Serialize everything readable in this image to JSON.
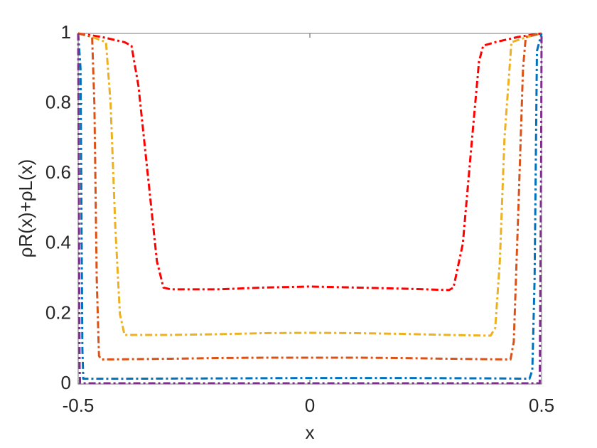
{
  "chart_data": {
    "type": "line",
    "xlabel": "x",
    "ylabel": "ρR(x)+ρL(x)",
    "xlim": [
      -0.5,
      0.5
    ],
    "ylim": [
      0,
      1
    ],
    "xticks": [
      -0.5,
      0,
      0.5
    ],
    "yticks": [
      0,
      0.2,
      0.4,
      0.6,
      0.8,
      1
    ],
    "series": [
      {
        "color": "#ff0000",
        "x": [
          -0.5,
          -0.45,
          -0.4,
          -0.385,
          -0.37,
          -0.35,
          -0.33,
          -0.316,
          -0.3,
          -0.2,
          -0.1,
          0,
          0.1,
          0.2,
          0.3,
          0.31,
          0.33,
          0.35,
          0.365,
          0.374,
          0.4,
          0.45,
          0.5
        ],
        "values": [
          1,
          0.99,
          0.975,
          0.965,
          0.85,
          0.6,
          0.35,
          0.275,
          0.27,
          0.27,
          0.275,
          0.278,
          0.275,
          0.272,
          0.268,
          0.275,
          0.4,
          0.7,
          0.92,
          0.965,
          0.975,
          0.99,
          1
        ]
      },
      {
        "color": "#edb120",
        "x": [
          -0.5,
          -0.47,
          -0.44,
          -0.43,
          -0.42,
          -0.41,
          -0.4,
          -0.3,
          -0.2,
          -0.1,
          0,
          0.1,
          0.2,
          0.3,
          0.39,
          0.4,
          0.41,
          0.42,
          0.435,
          0.47,
          0.5
        ],
        "values": [
          1,
          0.99,
          0.975,
          0.8,
          0.45,
          0.2,
          0.14,
          0.14,
          0.142,
          0.145,
          0.146,
          0.145,
          0.143,
          0.14,
          0.138,
          0.16,
          0.35,
          0.7,
          0.975,
          0.99,
          1
        ]
      },
      {
        "color": "#d95319",
        "x": [
          -0.5,
          -0.47,
          -0.465,
          -0.46,
          -0.455,
          -0.45,
          -0.3,
          -0.2,
          -0.1,
          0,
          0.1,
          0.2,
          0.3,
          0.433,
          0.44,
          0.45,
          0.46,
          0.466,
          0.5
        ],
        "values": [
          1,
          0.99,
          0.8,
          0.3,
          0.08,
          0.07,
          0.072,
          0.074,
          0.075,
          0.075,
          0.075,
          0.074,
          0.072,
          0.07,
          0.12,
          0.5,
          0.9,
          0.99,
          1
        ]
      },
      {
        "color": "#0072bd",
        "x": [
          -0.5,
          -0.495,
          -0.491,
          -0.489,
          -0.4,
          -0.2,
          0,
          0.2,
          0.4,
          0.474,
          0.48,
          0.485,
          0.49,
          0.5
        ],
        "values": [
          1,
          0.9,
          0.1,
          0.015,
          0.015,
          0.016,
          0.017,
          0.017,
          0.016,
          0.015,
          0.04,
          0.3,
          0.95,
          1
        ]
      },
      {
        "color": "#7e2f8e",
        "x": [
          -0.5,
          -0.497,
          -0.496,
          -0.4,
          0,
          0.4,
          0.496,
          0.499,
          0.5
        ],
        "values": [
          1,
          0.05,
          0.002,
          0.002,
          0.002,
          0.002,
          0.002,
          0.6,
          1
        ]
      }
    ]
  }
}
